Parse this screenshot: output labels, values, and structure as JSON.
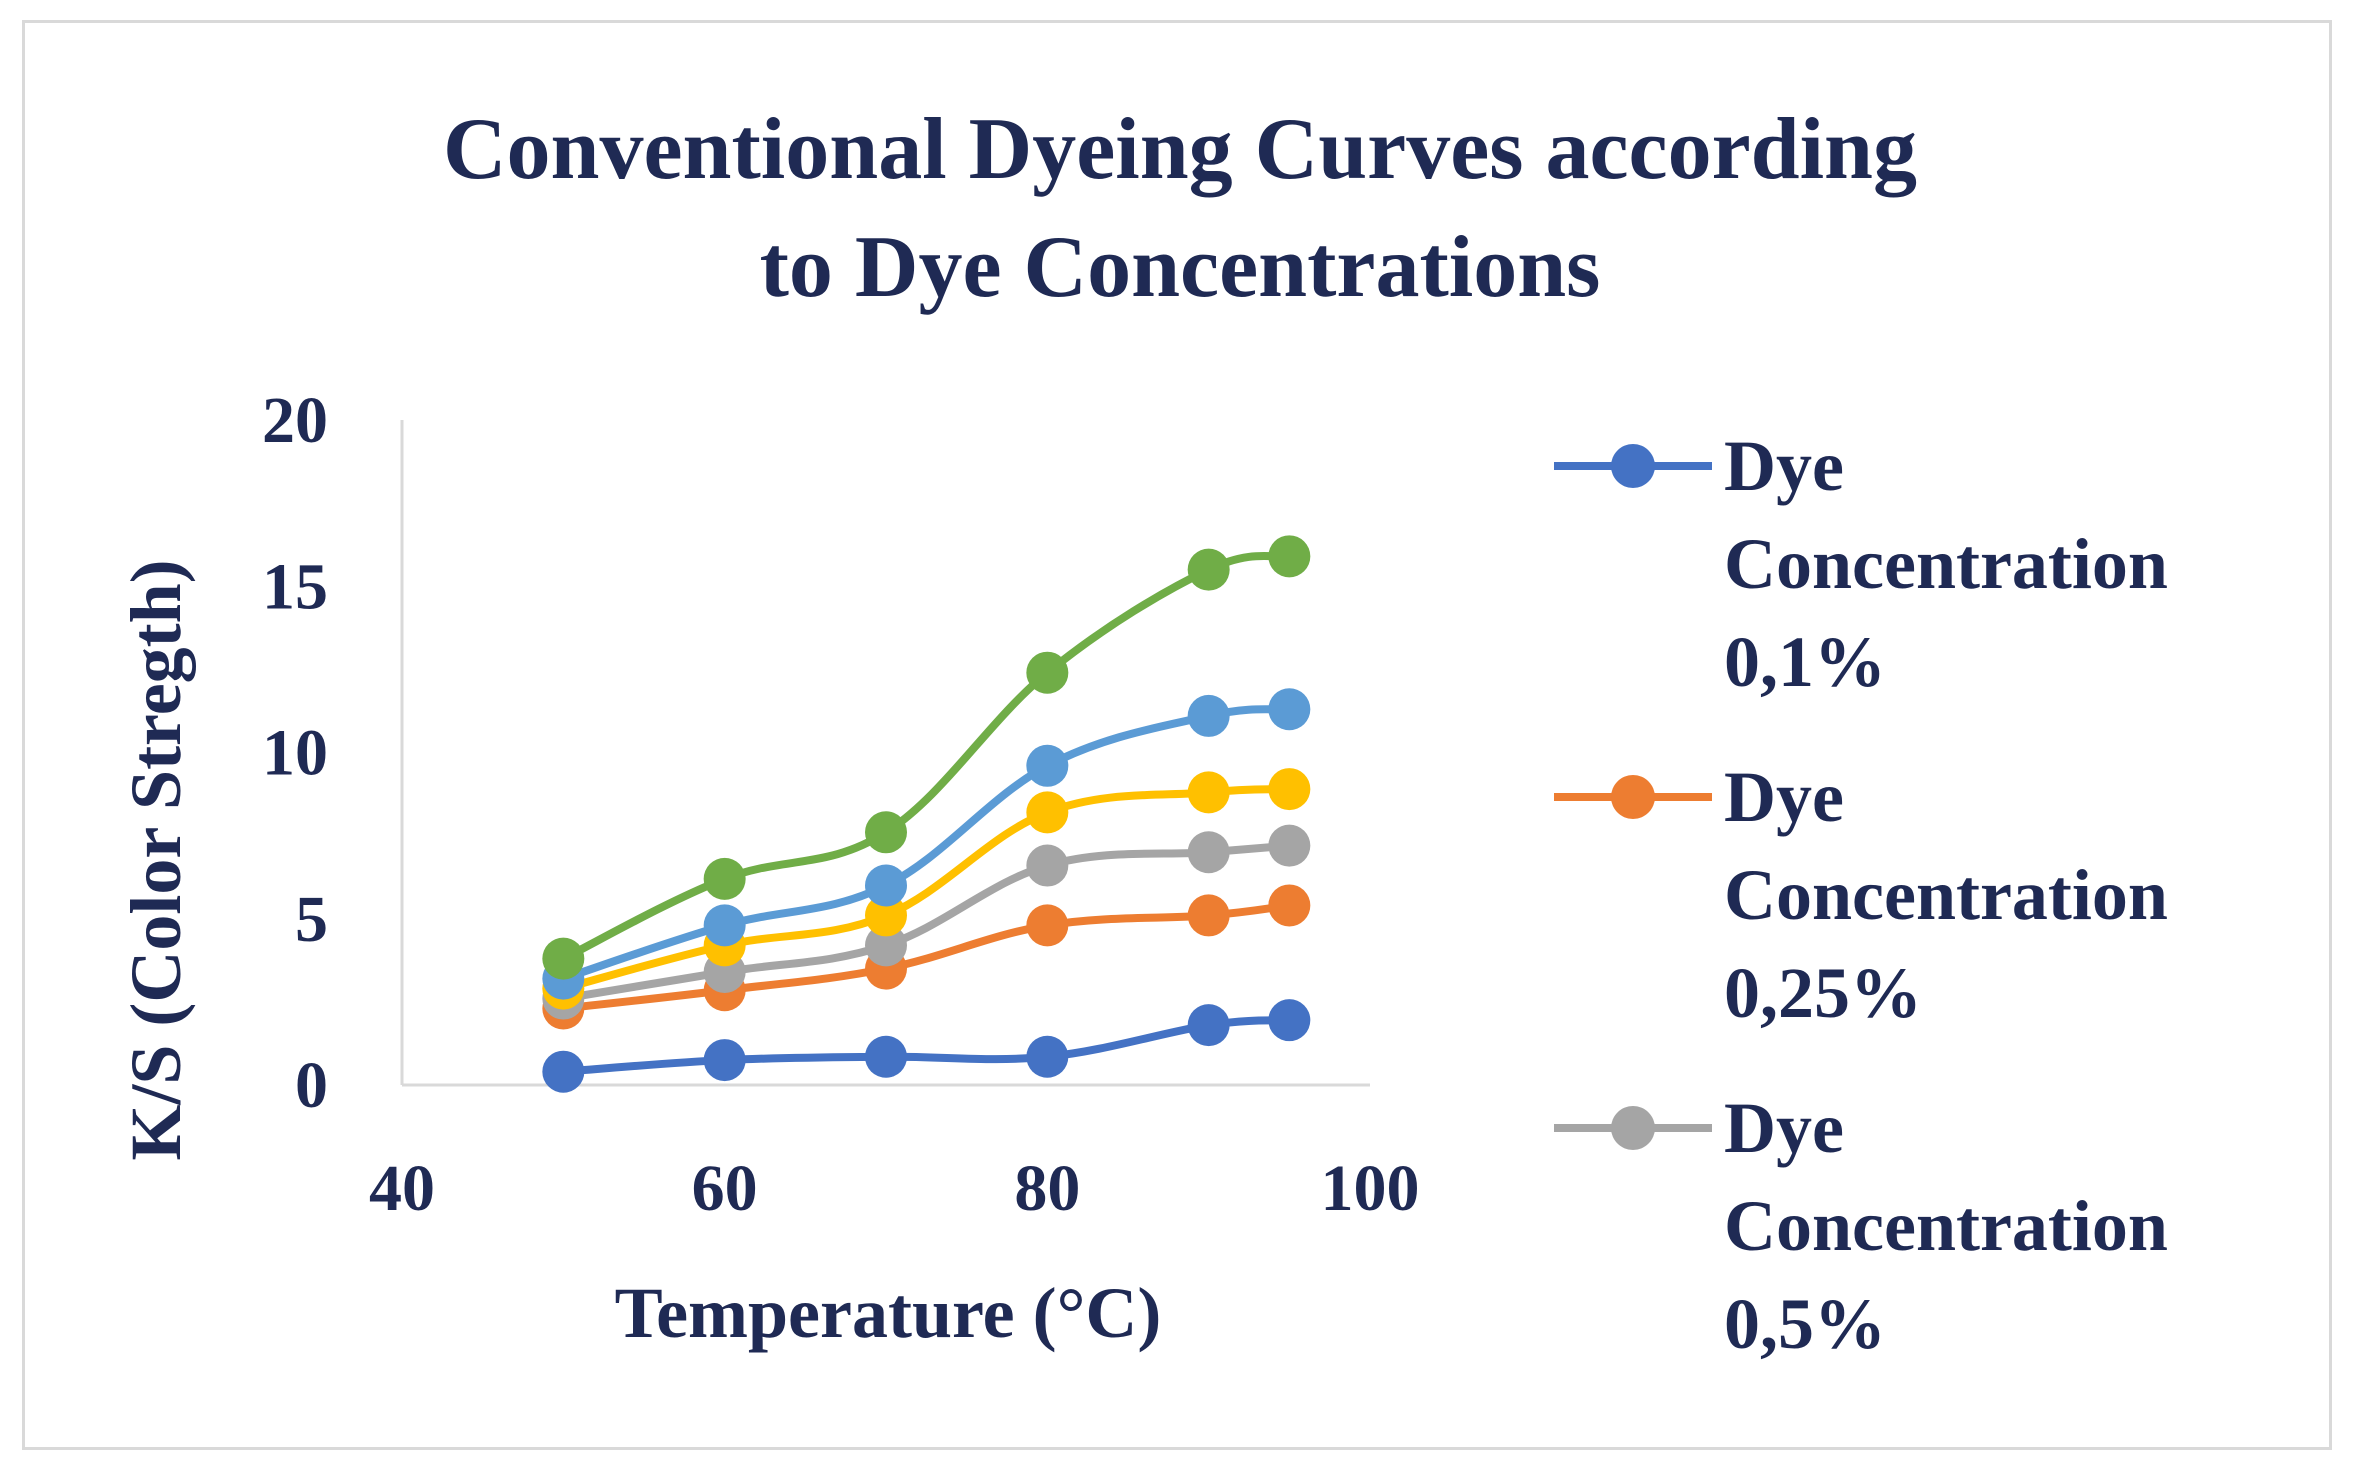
{
  "chart_data": {
    "type": "line",
    "title_lines": [
      "Conventional Dyeing Curves according",
      "to Dye Concentrations"
    ],
    "xlabel": "Temperature (°C)",
    "ylabel": "K/S (Color Stregth)",
    "xlim": [
      40,
      100
    ],
    "ylim": [
      0,
      20
    ],
    "xticks": [
      40,
      60,
      80,
      100
    ],
    "yticks": [
      0,
      5,
      10,
      15,
      20
    ],
    "x": [
      50,
      60,
      70,
      80,
      90,
      95
    ],
    "series": [
      {
        "name": "Dye Concentration 0,1%",
        "legend_lines": [
          "Dye",
          "Concentration",
          "0,1%"
        ],
        "color": "#4472c4",
        "values": [
          0.4,
          0.75,
          0.85,
          0.85,
          1.8,
          1.95
        ]
      },
      {
        "name": "Dye Concentration 0,25%",
        "legend_lines": [
          "Dye",
          "Concentration",
          "0,25%"
        ],
        "color": "#ed7d31",
        "values": [
          2.3,
          2.85,
          3.5,
          4.8,
          5.1,
          5.4
        ]
      },
      {
        "name": "Dye Concentration 0,5%",
        "legend_lines": [
          "Dye",
          "Concentration",
          "0,5%"
        ],
        "color": "#a5a5a5",
        "values": [
          2.6,
          3.4,
          4.2,
          6.6,
          7.0,
          7.2
        ]
      },
      {
        "name": "",
        "legend_lines": [],
        "color": "#ffc000",
        "values": [
          2.9,
          4.2,
          5.1,
          8.2,
          8.8,
          8.9
        ]
      },
      {
        "name": "",
        "legend_lines": [],
        "color": "#5b9bd5",
        "values": [
          3.2,
          4.8,
          6.0,
          9.6,
          11.1,
          11.3
        ]
      },
      {
        "name": "",
        "legend_lines": [],
        "color": "#70ad47",
        "values": [
          3.8,
          6.2,
          7.6,
          12.4,
          15.5,
          15.9
        ]
      }
    ]
  }
}
